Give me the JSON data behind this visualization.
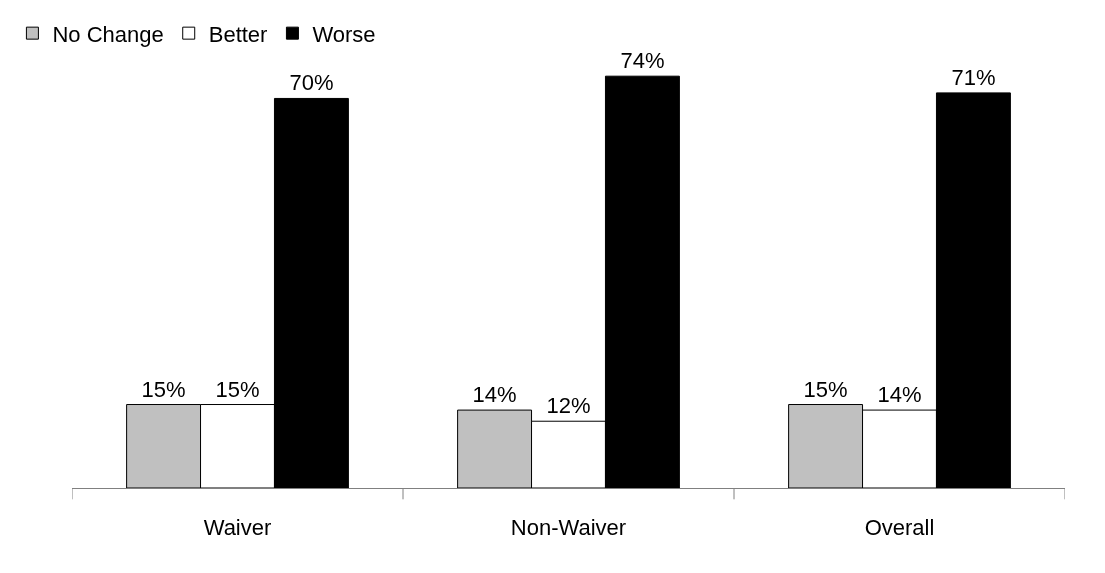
{
  "chart_data": {
    "type": "bar",
    "categories": [
      "Waiver",
      "Non-Waiver",
      "Overall"
    ],
    "series": [
      {
        "name": "No Change",
        "color": "#c0c0c0",
        "values": [
          15,
          14,
          15
        ],
        "value_labels": [
          "15%",
          "14%",
          "15%"
        ]
      },
      {
        "name": "Better",
        "color": "#ffffff",
        "values": [
          15,
          12,
          14
        ],
        "value_labels": [
          "15%",
          "12%",
          "14%"
        ]
      },
      {
        "name": "Worse",
        "color": "#000000",
        "values": [
          70,
          74,
          71
        ],
        "value_labels": [
          "70%",
          "74%",
          "71%"
        ]
      }
    ],
    "legend": "top left"
  }
}
